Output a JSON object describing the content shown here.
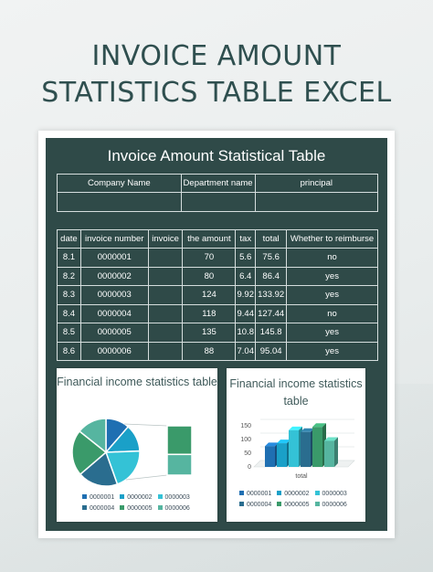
{
  "page": {
    "title_line1": "INVOICE AMOUNT",
    "title_line2": "STATISTICS TABLE EXCEL"
  },
  "sheet": {
    "title": "Invoice Amount Statistical Table",
    "info_table": {
      "headers": [
        "Company Name",
        "Department name",
        "principal"
      ],
      "values": [
        "",
        "",
        ""
      ]
    },
    "data_table": {
      "headers": [
        "date",
        "invoice number",
        "invoice",
        "the amount",
        "tax",
        "total",
        "Whether to reimburse"
      ],
      "rows": [
        [
          "8.1",
          "0000001",
          "",
          "70",
          "5.6",
          "75.6",
          "no"
        ],
        [
          "8.2",
          "0000002",
          "",
          "80",
          "6.4",
          "86.4",
          "yes"
        ],
        [
          "8.3",
          "0000003",
          "",
          "124",
          "9.92",
          "133.92",
          "yes"
        ],
        [
          "8.4",
          "0000004",
          "",
          "118",
          "9.44",
          "127.44",
          "no"
        ],
        [
          "8.5",
          "0000005",
          "",
          "135",
          "10.8",
          "145.8",
          "yes"
        ],
        [
          "8.6",
          "0000006",
          "",
          "88",
          "7.04",
          "95.04",
          "yes"
        ]
      ]
    }
  },
  "colors": {
    "panel": "#2f4a48",
    "series": [
      "#1f6fb2",
      "#1aa0c8",
      "#34c2d6",
      "#2a6d8f",
      "#3a9a6a",
      "#56b5a0"
    ]
  },
  "chart_data": [
    {
      "type": "pie",
      "title": "Financial income statistics table",
      "labels": [
        "0000001",
        "0000002",
        "0000003",
        "0000004",
        "0000005",
        "0000006"
      ],
      "values": [
        75.6,
        86.4,
        133.92,
        127.44,
        145.8,
        95.04
      ],
      "legend": "bottom"
    },
    {
      "type": "bar",
      "title": "Financial income statistics table",
      "categories": [
        "total"
      ],
      "series": [
        {
          "name": "0000001",
          "values": [
            75.6
          ]
        },
        {
          "name": "0000002",
          "values": [
            86.4
          ]
        },
        {
          "name": "0000003",
          "values": [
            133.92
          ]
        },
        {
          "name": "0000004",
          "values": [
            127.44
          ]
        },
        {
          "name": "0000005",
          "values": [
            145.8
          ]
        },
        {
          "name": "0000006",
          "values": [
            95.04
          ]
        }
      ],
      "ylim": [
        0,
        150
      ],
      "yticks": [
        "0",
        "50",
        "100",
        "150"
      ],
      "legend": "bottom"
    }
  ]
}
